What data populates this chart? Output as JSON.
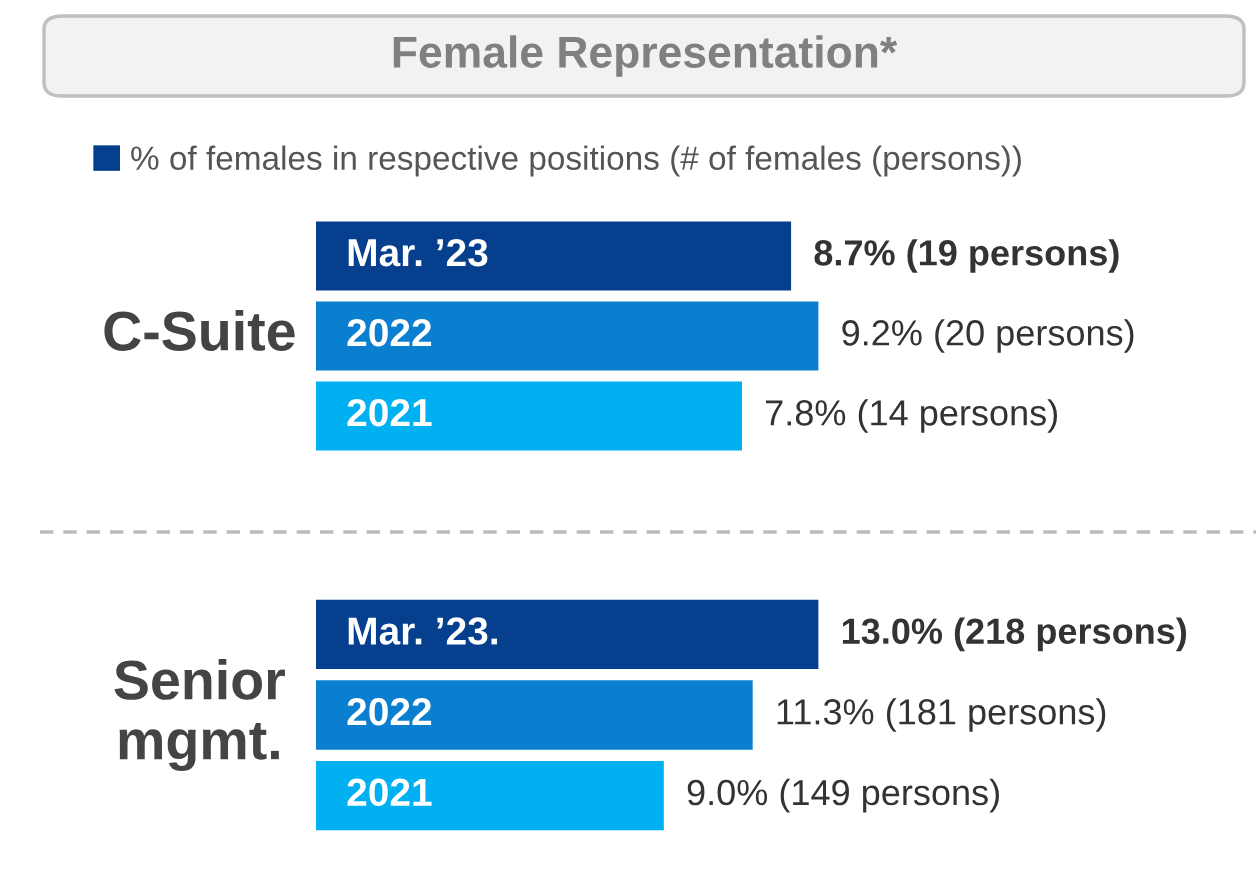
{
  "chart_data": [
    {
      "type": "bar",
      "orientation": "horizontal",
      "title": "Female Representation*",
      "ylabel": "C-Suite",
      "legend": "top left",
      "tick_labels": false,
      "categories": [
        "Mar. ’23",
        "2022",
        "2021"
      ],
      "series": [
        {
          "name": "% of females in respective positions (# of females (persons))",
          "color": "#063f8e",
          "colors": [
            "#063f8e",
            "#0a7fcf",
            "#00b0f0"
          ],
          "values": [
            8.7,
            9.2,
            7.8
          ],
          "value_labels": [
            "8.7% (19 persons)",
            "9.2% (20 persons)",
            "7.8% (14 persons)"
          ]
        }
      ]
    },
    {
      "type": "bar",
      "orientation": "horizontal",
      "ylabel": "Senior\nmgmt.",
      "tick_labels": false,
      "categories": [
        "Mar. ’23.",
        "2022",
        "2021"
      ],
      "series": [
        {
          "colors": [
            "#063f8e",
            "#0a7fcf",
            "#00b0f0"
          ],
          "values": [
            13.0,
            11.3,
            9.0
          ],
          "value_labels": [
            "13.0% (218 persons)",
            "11.3% (181 persons)",
            "9.0% (149 persons)"
          ]
        }
      ]
    }
  ]
}
